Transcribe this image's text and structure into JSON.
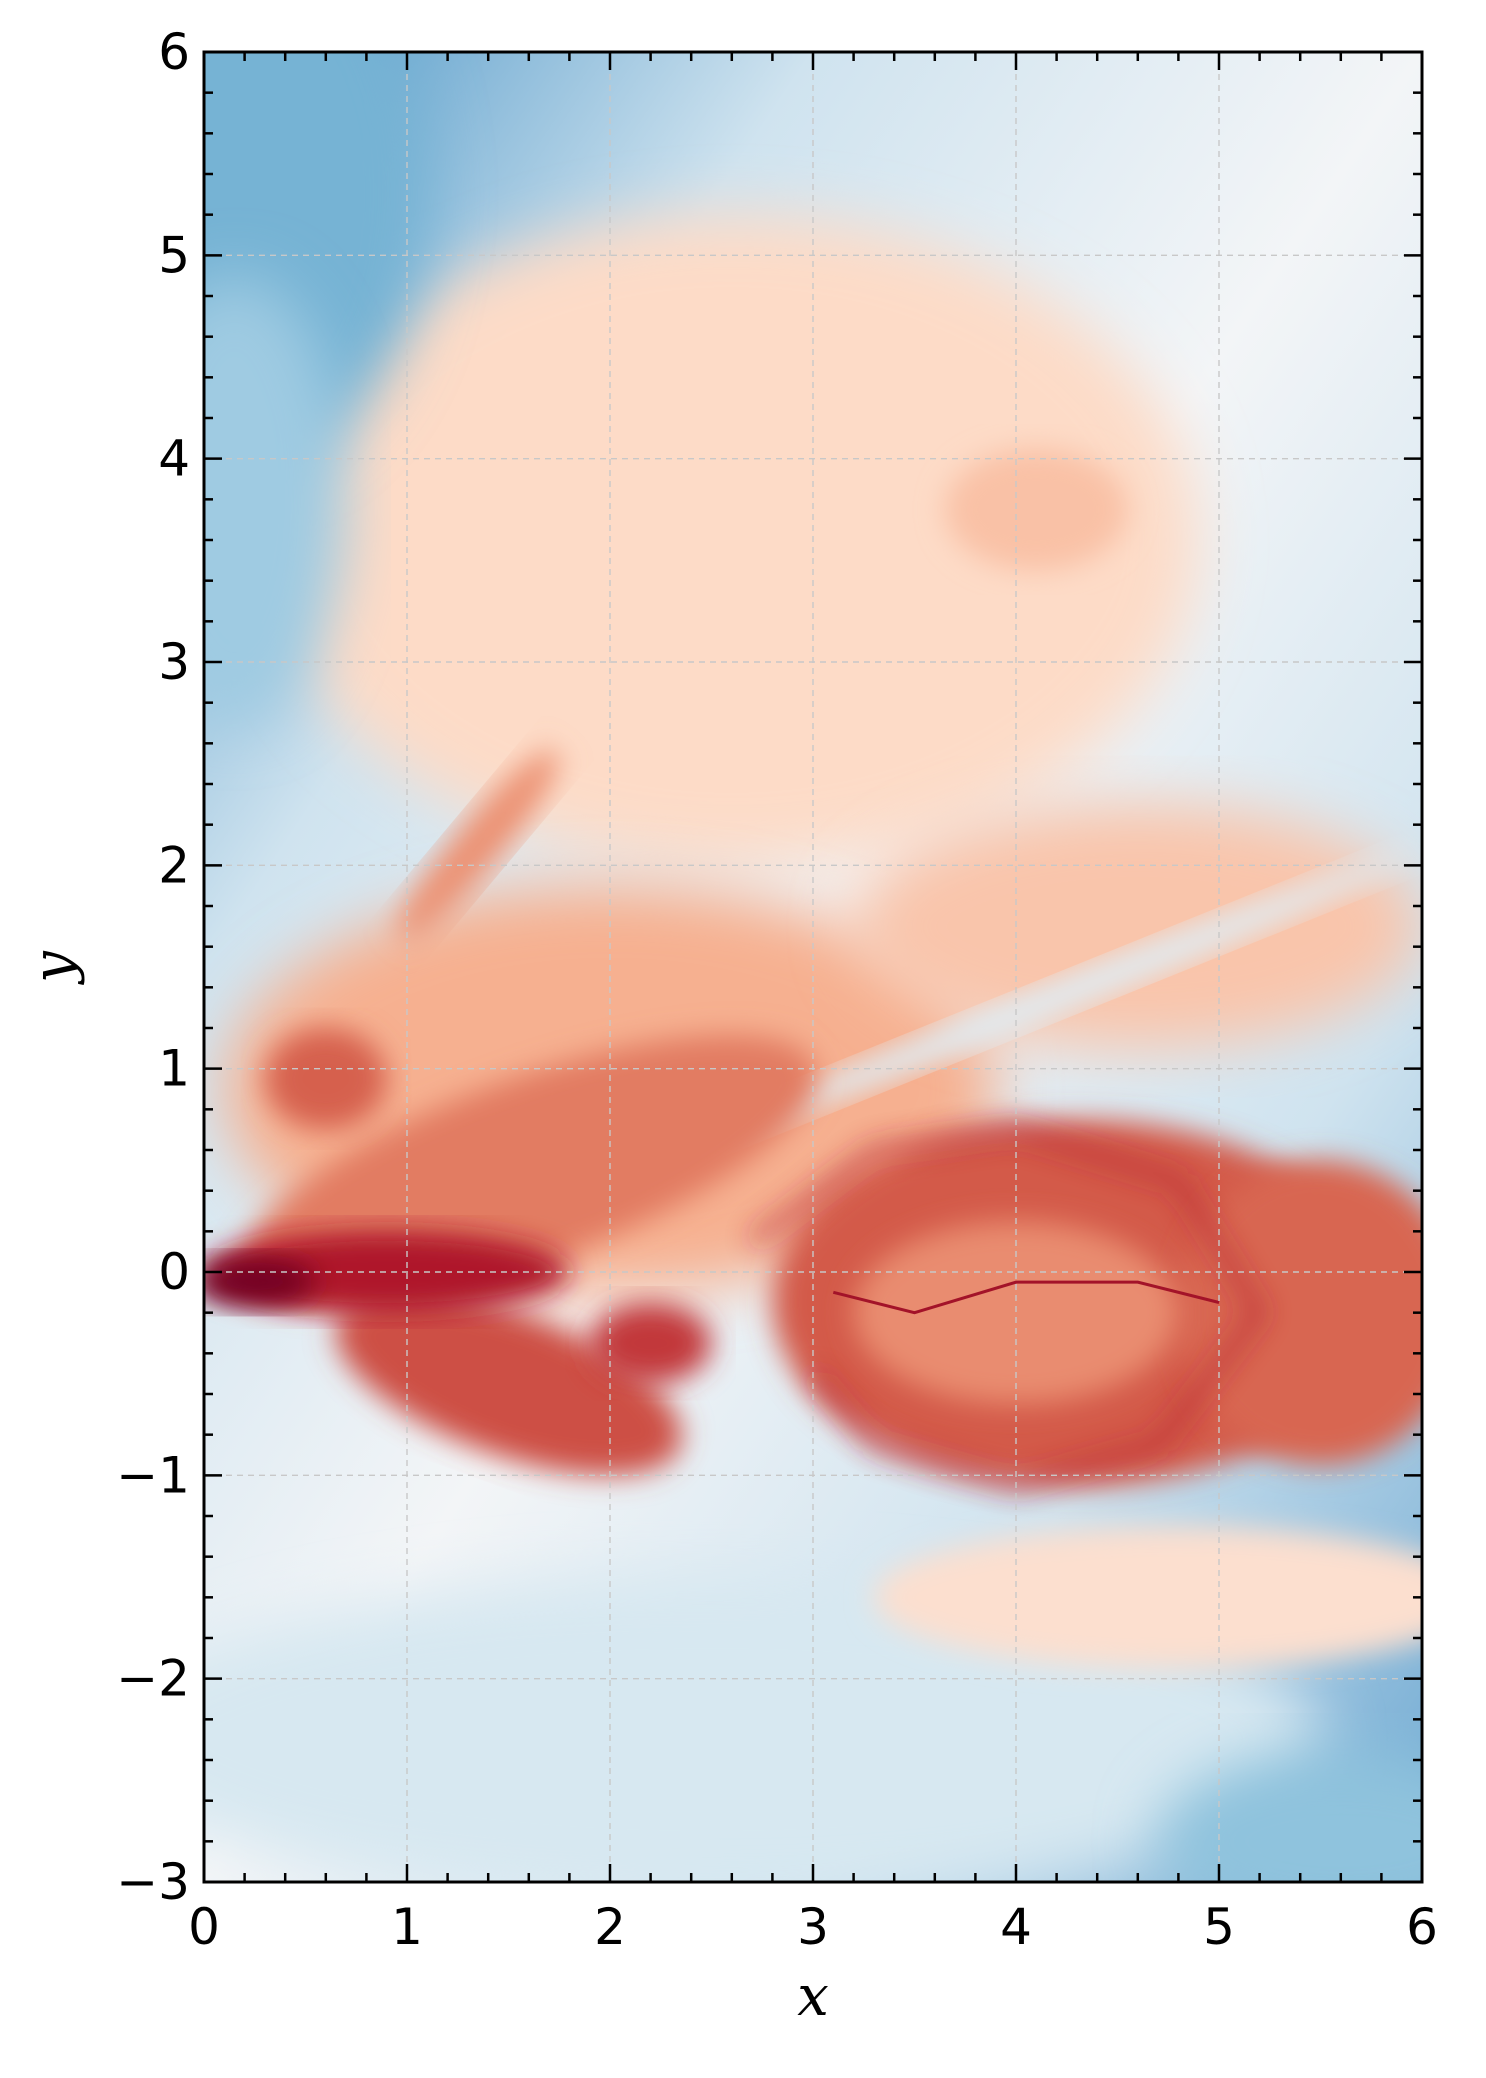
{
  "chart_data": {
    "type": "heatmap",
    "title": "",
    "xlabel": "x",
    "ylabel": "y",
    "xlim": [
      0,
      6
    ],
    "ylim": [
      -3,
      6
    ],
    "x_ticks": [
      "0",
      "1",
      "2",
      "3",
      "4",
      "5",
      "6"
    ],
    "y_ticks": [
      "−3",
      "−2",
      "−1",
      "0",
      "1",
      "2",
      "3",
      "4",
      "5",
      "6"
    ],
    "grid": true,
    "colormap": [
      "#4393c3",
      "#92c5de",
      "#d1e5f0",
      "#f7f7f7",
      "#fddbc7",
      "#f4a582",
      "#d6604d",
      "#b2182b",
      "#67001f"
    ],
    "colorbar": false,
    "note_values": "normalized field level 0-1 (0 = deep blue, 0.5 = white, 1 = deep red)",
    "features": [
      {
        "name": "jet_nozzle_core",
        "x": 0.3,
        "y": -0.1,
        "level": 0.97
      },
      {
        "name": "jet_stem",
        "x": 1.1,
        "y": 0.0,
        "level": 0.86
      },
      {
        "name": "upper_left_vortex",
        "x": 0.6,
        "y": 0.95,
        "level": 0.75
      },
      {
        "name": "lower_shear_layer",
        "x": 1.6,
        "y": -0.6,
        "level": 0.78
      },
      {
        "name": "mid_vortex",
        "x": 2.2,
        "y": -0.35,
        "level": 0.8
      },
      {
        "name": "head_bulb",
        "x": 4.3,
        "y": -0.1,
        "level": 0.8
      },
      {
        "name": "outflow_band",
        "x": 5.6,
        "y": -0.2,
        "level": 0.72
      },
      {
        "name": "streak",
        "x": 1.3,
        "y": 2.1,
        "level": 0.65
      },
      {
        "name": "upper_patch",
        "x": 4.1,
        "y": 3.75,
        "level": 0.56
      },
      {
        "name": "blue_filament",
        "x": 4.2,
        "y": 1.4,
        "level": 0.32
      },
      {
        "name": "upper_left_blue",
        "x": 0.1,
        "y": 5.5,
        "level": 0.05
      },
      {
        "name": "lower_right_blue",
        "x": 5.5,
        "y": -2.8,
        "level": 0.14
      },
      {
        "name": "lower_blue_region",
        "x": 2.5,
        "y": -2.2,
        "level": 0.26
      },
      {
        "name": "top_band_blue",
        "x": 3.0,
        "y": 5.8,
        "level": 0.26
      }
    ]
  }
}
